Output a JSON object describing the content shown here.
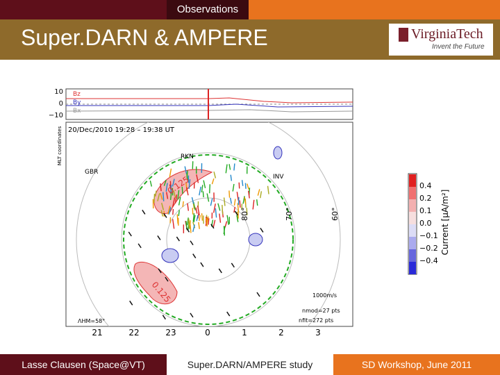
{
  "header": {
    "section": "Observations",
    "title": "Super.DARN & AMPERE",
    "logo": {
      "name": "VirginiaTech",
      "tagline": "Invent the Future"
    }
  },
  "figure": {
    "imf": {
      "labels": [
        "Bz",
        "By",
        "Bx"
      ],
      "ticks": [
        "10",
        "0",
        "−10"
      ]
    },
    "axis_label": "MLT coordinates",
    "time": "20/Dec/2010  19:28 – 19:38 UT",
    "radars": [
      "RKN",
      "GBR",
      "INV"
    ],
    "latitudes": [
      "80°",
      "70°",
      "60°"
    ],
    "contours": [
      "0.125",
      "0.125"
    ],
    "velocity_scale": "1000m/s",
    "counts": [
      "nmod=27 pts",
      "nfit=272 pts"
    ],
    "boundary": "ΛHM=58°",
    "mlt": [
      "21",
      "22",
      "23",
      "0",
      "1",
      "2",
      "3"
    ],
    "colorbar": {
      "ticks": [
        "0.4",
        "0.2",
        "0.1",
        "0.0",
        "−0.1",
        "−0.2",
        "−0.4"
      ],
      "label": "Current [μA/m²]"
    }
  },
  "footer": {
    "author": "Lasse Clausen (Space@VT)",
    "topic": "Super.DARN/AMPERE study",
    "event": "SD Workshop, June 2011"
  }
}
